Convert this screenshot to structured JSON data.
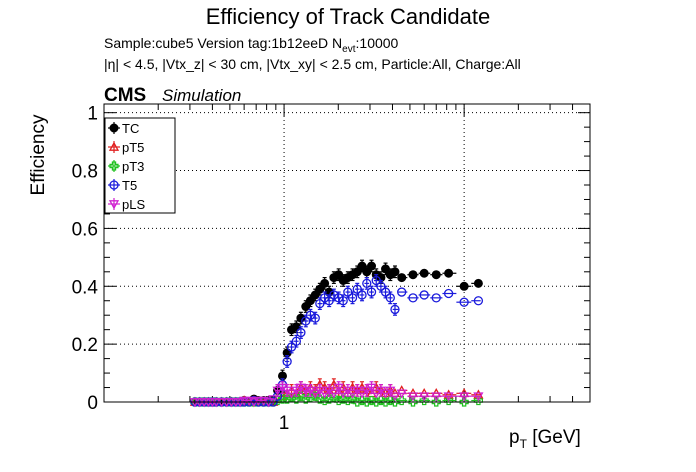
{
  "chart_data": {
    "type": "scatter",
    "title": "Efficiency of Track Candidate",
    "subtitle_line1": "Sample:cube5   Version tag:1b12eeD  N",
    "subtitle_line1_sub": "evt",
    "subtitle_line1_end": ":10000",
    "subtitle_line2": "|η| < 4.5, |Vtx_z| < 30 cm, |Vtx_xy| < 2.5 cm, Particle:All, Charge:All",
    "cms_label": "CMS",
    "sim_label": "Simulation",
    "xlabel": "p",
    "xlabel_sub": "T",
    "xlabel_unit": " [GeV]",
    "ylabel": "Efficiency",
    "x_scale": "log",
    "xlim": [
      0.1,
      50
    ],
    "ylim": [
      0,
      1.03
    ],
    "x_tick_labels": [
      "1"
    ],
    "y_tick_labels": [
      "0",
      "0.2",
      "0.4",
      "0.6",
      "0.8",
      "1"
    ],
    "grid": true,
    "legend_position": "top-left",
    "series": [
      {
        "name": "TC",
        "color": "#000000",
        "marker": "filled-circle",
        "points": [
          [
            0.32,
            0.0
          ],
          [
            0.34,
            0.0
          ],
          [
            0.36,
            0.0
          ],
          [
            0.38,
            0.0
          ],
          [
            0.4,
            0.0
          ],
          [
            0.42,
            0.0
          ],
          [
            0.45,
            0.0
          ],
          [
            0.48,
            0.0
          ],
          [
            0.51,
            0.0
          ],
          [
            0.54,
            0.0
          ],
          [
            0.57,
            0.0
          ],
          [
            0.6,
            0.005
          ],
          [
            0.64,
            0.0
          ],
          [
            0.68,
            0.01
          ],
          [
            0.72,
            0.005
          ],
          [
            0.77,
            0.005
          ],
          [
            0.82,
            0.005
          ],
          [
            0.87,
            0.005
          ],
          [
            0.92,
            0.04
          ],
          [
            0.98,
            0.09
          ],
          [
            1.04,
            0.17
          ],
          [
            1.1,
            0.25
          ],
          [
            1.17,
            0.26
          ],
          [
            1.24,
            0.29
          ],
          [
            1.32,
            0.33
          ],
          [
            1.4,
            0.35
          ],
          [
            1.49,
            0.37
          ],
          [
            1.58,
            0.39
          ],
          [
            1.68,
            0.41
          ],
          [
            1.78,
            0.38
          ],
          [
            1.89,
            0.43
          ],
          [
            2.01,
            0.44
          ],
          [
            2.13,
            0.42
          ],
          [
            2.26,
            0.43
          ],
          [
            2.4,
            0.44
          ],
          [
            2.55,
            0.45
          ],
          [
            2.71,
            0.47
          ],
          [
            2.88,
            0.45
          ],
          [
            3.06,
            0.47
          ],
          [
            3.25,
            0.44
          ],
          [
            3.45,
            0.43
          ],
          [
            3.66,
            0.46
          ],
          [
            3.89,
            0.44
          ],
          [
            4.13,
            0.45
          ],
          [
            4.5,
            0.43
          ],
          [
            5.2,
            0.44
          ],
          [
            6.0,
            0.445
          ],
          [
            7.0,
            0.44
          ],
          [
            8.2,
            0.445
          ],
          [
            10.0,
            0.4
          ],
          [
            12.0,
            0.41
          ]
        ]
      },
      {
        "name": "pT5",
        "color": "#e02020",
        "marker": "open-triangle",
        "points": [
          [
            0.32,
            0.0
          ],
          [
            0.34,
            0.0
          ],
          [
            0.36,
            0.0
          ],
          [
            0.38,
            0.0
          ],
          [
            0.4,
            0.0
          ],
          [
            0.42,
            0.0
          ],
          [
            0.45,
            0.0
          ],
          [
            0.48,
            0.0
          ],
          [
            0.51,
            0.0
          ],
          [
            0.54,
            0.0
          ],
          [
            0.57,
            0.0
          ],
          [
            0.6,
            0.005
          ],
          [
            0.64,
            0.0
          ],
          [
            0.68,
            0.005
          ],
          [
            0.72,
            0.0
          ],
          [
            0.77,
            0.0
          ],
          [
            0.82,
            0.0
          ],
          [
            0.87,
            0.0
          ],
          [
            0.92,
            0.01
          ],
          [
            0.98,
            0.02
          ],
          [
            1.04,
            0.03
          ],
          [
            1.1,
            0.04
          ],
          [
            1.17,
            0.03
          ],
          [
            1.24,
            0.05
          ],
          [
            1.32,
            0.04
          ],
          [
            1.4,
            0.05
          ],
          [
            1.49,
            0.04
          ],
          [
            1.58,
            0.06
          ],
          [
            1.68,
            0.05
          ],
          [
            1.78,
            0.04
          ],
          [
            1.89,
            0.06
          ],
          [
            2.01,
            0.04
          ],
          [
            2.13,
            0.05
          ],
          [
            2.26,
            0.03
          ],
          [
            2.4,
            0.05
          ],
          [
            2.55,
            0.04
          ],
          [
            2.71,
            0.05
          ],
          [
            2.88,
            0.04
          ],
          [
            3.06,
            0.03
          ],
          [
            3.25,
            0.05
          ],
          [
            3.45,
            0.04
          ],
          [
            3.66,
            0.03
          ],
          [
            3.89,
            0.04
          ],
          [
            4.13,
            0.03
          ],
          [
            4.5,
            0.04
          ],
          [
            5.2,
            0.03
          ],
          [
            6.0,
            0.03
          ],
          [
            7.0,
            0.03
          ],
          [
            8.2,
            0.025
          ],
          [
            10.0,
            0.03
          ],
          [
            12.0,
            0.025
          ]
        ]
      },
      {
        "name": "pT3",
        "color": "#20c020",
        "marker": "open-cross",
        "points": [
          [
            0.32,
            0.0
          ],
          [
            0.34,
            0.0
          ],
          [
            0.36,
            0.0
          ],
          [
            0.38,
            0.0
          ],
          [
            0.4,
            0.0
          ],
          [
            0.42,
            0.0
          ],
          [
            0.45,
            0.0
          ],
          [
            0.48,
            0.0
          ],
          [
            0.51,
            0.0
          ],
          [
            0.54,
            0.0
          ],
          [
            0.57,
            0.0
          ],
          [
            0.6,
            0.0
          ],
          [
            0.64,
            0.0
          ],
          [
            0.68,
            0.0
          ],
          [
            0.72,
            0.0
          ],
          [
            0.77,
            0.0
          ],
          [
            0.82,
            0.0
          ],
          [
            0.87,
            0.0
          ],
          [
            0.92,
            0.005
          ],
          [
            0.98,
            0.01
          ],
          [
            1.04,
            0.01
          ],
          [
            1.1,
            0.015
          ],
          [
            1.17,
            0.01
          ],
          [
            1.24,
            0.02
          ],
          [
            1.32,
            0.01
          ],
          [
            1.4,
            0.015
          ],
          [
            1.49,
            0.02
          ],
          [
            1.58,
            0.01
          ],
          [
            1.68,
            0.005
          ],
          [
            1.78,
            0.01
          ],
          [
            1.89,
            0.015
          ],
          [
            2.01,
            0.005
          ],
          [
            2.13,
            0.01
          ],
          [
            2.26,
            0.005
          ],
          [
            2.4,
            0.01
          ],
          [
            2.55,
            0.0
          ],
          [
            2.71,
            0.005
          ],
          [
            2.88,
            0.0
          ],
          [
            3.06,
            0.005
          ],
          [
            3.25,
            0.0
          ],
          [
            3.45,
            0.005
          ],
          [
            3.66,
            0.0
          ],
          [
            3.89,
            0.005
          ],
          [
            4.13,
            0.0
          ],
          [
            4.5,
            0.005
          ],
          [
            5.2,
            0.0
          ],
          [
            6.0,
            0.005
          ],
          [
            7.0,
            0.0
          ],
          [
            8.2,
            0.005
          ],
          [
            10.0,
            0.0
          ],
          [
            12.0,
            0.005
          ]
        ]
      },
      {
        "name": "T5",
        "color": "#1a1adc",
        "marker": "open-circle",
        "points": [
          [
            0.32,
            0.0
          ],
          [
            0.34,
            0.0
          ],
          [
            0.36,
            0.0
          ],
          [
            0.38,
            0.0
          ],
          [
            0.4,
            0.0
          ],
          [
            0.42,
            0.0
          ],
          [
            0.45,
            0.0
          ],
          [
            0.48,
            0.0
          ],
          [
            0.51,
            0.0
          ],
          [
            0.54,
            0.0
          ],
          [
            0.57,
            0.0
          ],
          [
            0.6,
            0.0
          ],
          [
            0.64,
            0.0
          ],
          [
            0.68,
            0.005
          ],
          [
            0.72,
            0.0
          ],
          [
            0.77,
            0.0
          ],
          [
            0.82,
            0.0
          ],
          [
            0.87,
            0.0
          ],
          [
            0.92,
            0.02
          ],
          [
            0.98,
            0.06
          ],
          [
            1.04,
            0.14
          ],
          [
            1.1,
            0.19
          ],
          [
            1.17,
            0.21
          ],
          [
            1.24,
            0.24
          ],
          [
            1.32,
            0.28
          ],
          [
            1.4,
            0.3
          ],
          [
            1.49,
            0.29
          ],
          [
            1.58,
            0.34
          ],
          [
            1.68,
            0.36
          ],
          [
            1.78,
            0.35
          ],
          [
            1.89,
            0.37
          ],
          [
            2.01,
            0.36
          ],
          [
            2.13,
            0.35
          ],
          [
            2.26,
            0.38
          ],
          [
            2.4,
            0.36
          ],
          [
            2.55,
            0.39
          ],
          [
            2.71,
            0.37
          ],
          [
            2.88,
            0.41
          ],
          [
            3.06,
            0.38
          ],
          [
            3.25,
            0.42
          ],
          [
            3.45,
            0.4
          ],
          [
            3.66,
            0.38
          ],
          [
            3.89,
            0.36
          ],
          [
            4.13,
            0.32
          ],
          [
            4.5,
            0.38
          ],
          [
            5.2,
            0.36
          ],
          [
            6.0,
            0.37
          ],
          [
            7.0,
            0.36
          ],
          [
            8.2,
            0.375
          ],
          [
            10.0,
            0.345
          ],
          [
            12.0,
            0.35
          ]
        ]
      },
      {
        "name": "pLS",
        "color": "#d020d0",
        "marker": "open-triangle-down",
        "points": [
          [
            0.32,
            0.0
          ],
          [
            0.34,
            0.0
          ],
          [
            0.36,
            0.0
          ],
          [
            0.38,
            0.0
          ],
          [
            0.4,
            0.0
          ],
          [
            0.42,
            0.0
          ],
          [
            0.45,
            0.0
          ],
          [
            0.48,
            0.0
          ],
          [
            0.51,
            0.0
          ],
          [
            0.54,
            0.0
          ],
          [
            0.57,
            0.0
          ],
          [
            0.6,
            0.005
          ],
          [
            0.64,
            0.005
          ],
          [
            0.68,
            0.0
          ],
          [
            0.72,
            0.005
          ],
          [
            0.77,
            0.005
          ],
          [
            0.82,
            0.0
          ],
          [
            0.87,
            0.01
          ],
          [
            0.92,
            0.04
          ],
          [
            0.98,
            0.05
          ],
          [
            1.04,
            0.04
          ],
          [
            1.1,
            0.03
          ],
          [
            1.17,
            0.04
          ],
          [
            1.24,
            0.05
          ],
          [
            1.32,
            0.04
          ],
          [
            1.4,
            0.04
          ],
          [
            1.49,
            0.03
          ],
          [
            1.58,
            0.04
          ],
          [
            1.68,
            0.03
          ],
          [
            1.78,
            0.04
          ],
          [
            1.89,
            0.03
          ],
          [
            2.01,
            0.05
          ],
          [
            2.13,
            0.03
          ],
          [
            2.26,
            0.04
          ],
          [
            2.4,
            0.03
          ],
          [
            2.55,
            0.04
          ],
          [
            2.71,
            0.03
          ],
          [
            2.88,
            0.04
          ],
          [
            3.06,
            0.05
          ],
          [
            3.25,
            0.03
          ],
          [
            3.45,
            0.04
          ],
          [
            3.66,
            0.03
          ],
          [
            3.89,
            0.04
          ],
          [
            4.13,
            0.02
          ],
          [
            4.5,
            0.03
          ],
          [
            5.2,
            0.02
          ],
          [
            6.0,
            0.02
          ],
          [
            7.0,
            0.02
          ],
          [
            8.2,
            0.02
          ],
          [
            10.0,
            0.02
          ],
          [
            12.0,
            0.02
          ]
        ]
      }
    ]
  }
}
